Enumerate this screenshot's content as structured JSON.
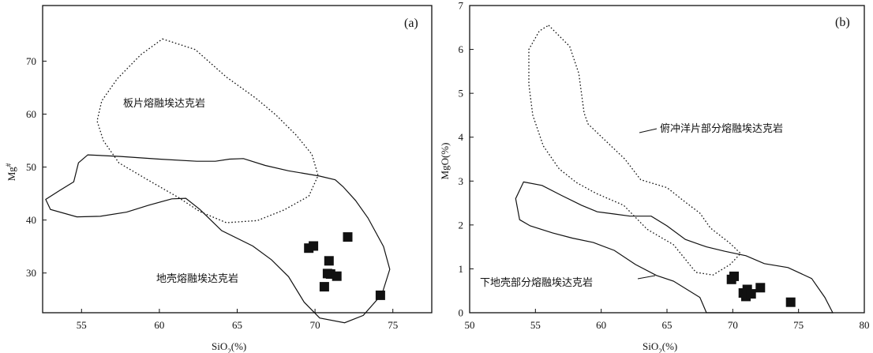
{
  "chart_data": [
    {
      "type": "scatter",
      "panel": "(a)",
      "xlabel": "SiO2(%)",
      "ylabel": "Mg#",
      "xlim": [
        52.5,
        77.5
      ],
      "ylim": [
        22.5,
        80.5
      ],
      "xticks": [
        55,
        60,
        65,
        70,
        75
      ],
      "yticks": [
        30,
        40,
        50,
        60,
        70
      ],
      "regions": [
        {
          "name": "板片熔融埃达克岩",
          "style": "dotted",
          "outline": [
            [
              60.2,
              74.2
            ],
            [
              62.3,
              72.2
            ],
            [
              64.3,
              67.0
            ],
            [
              66.2,
              63.0
            ],
            [
              67.5,
              59.8
            ],
            [
              68.8,
              56.0
            ],
            [
              69.8,
              52.4
            ],
            [
              70.2,
              48.4
            ],
            [
              69.6,
              44.5
            ],
            [
              68.0,
              41.9
            ],
            [
              66.3,
              39.9
            ],
            [
              64.3,
              39.5
            ],
            [
              62.6,
              41.6
            ],
            [
              61.2,
              44.3
            ],
            [
              59.3,
              47.5
            ],
            [
              57.4,
              50.8
            ],
            [
              56.4,
              55.0
            ],
            [
              56.0,
              58.7
            ],
            [
              56.3,
              62.5
            ],
            [
              57.3,
              66.7
            ],
            [
              58.8,
              71.2
            ],
            [
              60.2,
              74.2
            ]
          ]
        },
        {
          "name": "地壳熔融埃达克岩",
          "style": "solid",
          "outline": [
            [
              55.4,
              52.3
            ],
            [
              57.5,
              52.0
            ],
            [
              60.0,
              51.5
            ],
            [
              62.4,
              51.1
            ],
            [
              63.6,
              51.1
            ],
            [
              64.5,
              51.5
            ],
            [
              65.4,
              51.6
            ],
            [
              66.8,
              50.3
            ],
            [
              68.3,
              49.3
            ],
            [
              69.3,
              48.8
            ],
            [
              70.3,
              48.3
            ],
            [
              71.3,
              47.6
            ],
            [
              71.8,
              46.3
            ],
            [
              72.6,
              43.7
            ],
            [
              73.4,
              40.4
            ],
            [
              74.4,
              35.0
            ],
            [
              74.8,
              30.7
            ],
            [
              74.3,
              26.0
            ],
            [
              73.1,
              22.0
            ],
            [
              71.9,
              20.6
            ],
            [
              70.3,
              21.5
            ],
            [
              69.3,
              24.5
            ],
            [
              68.3,
              29.3
            ],
            [
              67.2,
              32.5
            ],
            [
              66.0,
              35.1
            ],
            [
              64.0,
              38.0
            ],
            [
              62.6,
              42.0
            ],
            [
              61.7,
              44.1
            ],
            [
              60.8,
              44.0
            ],
            [
              59.3,
              42.8
            ],
            [
              57.9,
              41.5
            ],
            [
              56.2,
              40.7
            ],
            [
              54.7,
              40.6
            ],
            [
              53.0,
              42.0
            ],
            [
              52.7,
              43.9
            ],
            [
              53.6,
              45.6
            ],
            [
              54.5,
              47.2
            ],
            [
              54.8,
              50.8
            ],
            [
              55.4,
              52.3
            ]
          ]
        }
      ],
      "points": [
        [
          69.6,
          34.7
        ],
        [
          69.9,
          35.1
        ],
        [
          70.9,
          32.3
        ],
        [
          72.1,
          36.8
        ],
        [
          71.0,
          29.8
        ],
        [
          70.6,
          27.4
        ],
        [
          70.8,
          29.9
        ],
        [
          71.4,
          29.4
        ],
        [
          74.2,
          25.8
        ]
      ]
    },
    {
      "type": "scatter",
      "panel": "(b)",
      "xlabel": "SiO2(%)",
      "ylabel": "MgO(%)",
      "xlim": [
        50,
        80
      ],
      "ylim": [
        0,
        7
      ],
      "xticks": [
        50,
        55,
        60,
        65,
        70,
        75,
        80
      ],
      "yticks": [
        0,
        1,
        2,
        3,
        4,
        5,
        6,
        7
      ],
      "regions": [
        {
          "name": "俯冲洋片部分熔融埃达克岩",
          "style": "dotted",
          "outline": [
            [
              56.0,
              6.55
            ],
            [
              57.6,
              6.07
            ],
            [
              58.3,
              5.45
            ],
            [
              58.7,
              4.55
            ],
            [
              59.0,
              4.3
            ],
            [
              60.5,
              3.87
            ],
            [
              61.8,
              3.5
            ],
            [
              63.0,
              3.03
            ],
            [
              65.0,
              2.85
            ],
            [
              66.4,
              2.52
            ],
            [
              67.5,
              2.27
            ],
            [
              68.3,
              1.93
            ],
            [
              69.8,
              1.58
            ],
            [
              70.6,
              1.35
            ],
            [
              69.8,
              1.1
            ],
            [
              68.5,
              0.86
            ],
            [
              67.2,
              0.92
            ],
            [
              65.5,
              1.55
            ],
            [
              63.5,
              1.9
            ],
            [
              61.7,
              2.45
            ],
            [
              59.6,
              2.72
            ],
            [
              58.1,
              2.97
            ],
            [
              56.8,
              3.28
            ],
            [
              55.6,
              3.8
            ],
            [
              54.8,
              4.5
            ],
            [
              54.5,
              5.2
            ],
            [
              54.5,
              6.0
            ],
            [
              55.3,
              6.42
            ],
            [
              56.0,
              6.55
            ]
          ]
        },
        {
          "name": "下地壳部分熔融埃达克岩",
          "style": "solid",
          "outline": [
            [
              54.1,
              2.98
            ],
            [
              55.5,
              2.9
            ],
            [
              57.0,
              2.67
            ],
            [
              58.5,
              2.45
            ],
            [
              59.7,
              2.3
            ],
            [
              61.0,
              2.25
            ],
            [
              62.2,
              2.2
            ],
            [
              63.8,
              2.2
            ],
            [
              65.0,
              1.98
            ],
            [
              66.4,
              1.67
            ],
            [
              68.0,
              1.5
            ],
            [
              69.4,
              1.4
            ],
            [
              71.0,
              1.3
            ],
            [
              72.4,
              1.12
            ],
            [
              74.2,
              1.03
            ],
            [
              76.0,
              0.78
            ],
            [
              77.0,
              0.35
            ],
            [
              77.6,
              0.0
            ],
            [
              68.0,
              0.0
            ],
            [
              67.5,
              0.35
            ],
            [
              65.5,
              0.72
            ],
            [
              64.2,
              0.85
            ],
            [
              62.6,
              1.1
            ],
            [
              61.0,
              1.42
            ],
            [
              59.4,
              1.6
            ],
            [
              57.8,
              1.7
            ],
            [
              56.3,
              1.82
            ],
            [
              54.6,
              1.98
            ],
            [
              53.8,
              2.12
            ],
            [
              53.5,
              2.6
            ],
            [
              54.1,
              2.98
            ]
          ]
        }
      ],
      "points": [
        [
          69.9,
          0.76
        ],
        [
          70.1,
          0.83
        ],
        [
          70.8,
          0.45
        ],
        [
          71.0,
          0.37
        ],
        [
          71.1,
          0.53
        ],
        [
          71.4,
          0.43
        ],
        [
          72.1,
          0.57
        ],
        [
          74.4,
          0.24
        ]
      ]
    }
  ]
}
